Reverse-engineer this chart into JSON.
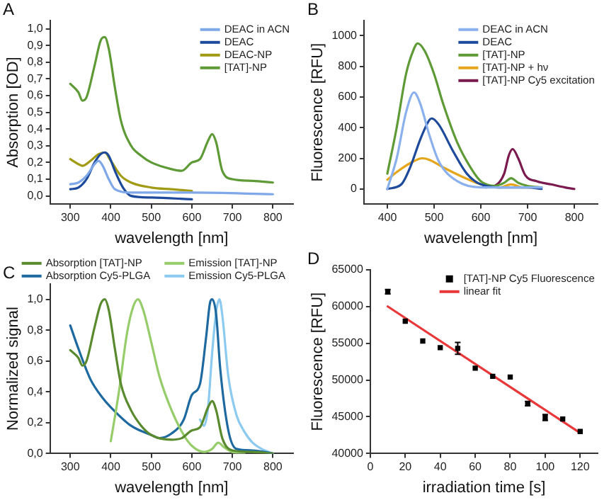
{
  "chart_data": [
    {
      "type": "line",
      "title": "A",
      "xlabel": "wavelength [nm]",
      "ylabel": "Absorption [OD]",
      "xlim": [
        250,
        850
      ],
      "xticks": [
        300,
        400,
        500,
        600,
        700,
        800
      ],
      "ylim": [
        -0.05,
        1.05
      ],
      "yticks": [
        {
          "value": 0,
          "label": "0,0"
        },
        {
          "value": 0.1,
          "label": "0,1"
        },
        {
          "value": 0.2,
          "label": "0,2"
        },
        {
          "value": 0.3,
          "label": "0,3"
        },
        {
          "value": 0.4,
          "label": "0,4"
        },
        {
          "value": 0.5,
          "label": "0,5"
        },
        {
          "value": 0.6,
          "label": "0,6"
        },
        {
          "value": 0.7,
          "label": "0,7"
        },
        {
          "value": 0.8,
          "label": "0,8"
        },
        {
          "value": 0.9,
          "label": "0,9"
        },
        {
          "value": 1.0,
          "label": "1,0"
        }
      ],
      "grid": false,
      "legend": "top right",
      "series": [
        {
          "name": "DEAC in ACN",
          "color": "#7fa8e8",
          "x": [
            300,
            320,
            340,
            360,
            370,
            380,
            395,
            410,
            450,
            600,
            800
          ],
          "values": [
            0.07,
            0.08,
            0.12,
            0.19,
            0.21,
            0.18,
            0.1,
            0.04,
            0.02,
            0.02,
            0.01
          ]
        },
        {
          "name": "DEAC",
          "color": "#1e4a9c",
          "x": [
            300,
            320,
            340,
            360,
            375,
            385,
            395,
            410,
            430,
            450,
            500,
            600
          ],
          "values": [
            0.04,
            0.05,
            0.1,
            0.2,
            0.25,
            0.26,
            0.24,
            0.15,
            0.05,
            0.0,
            -0.01,
            -0.02
          ]
        },
        {
          "name": "DEAC-NP",
          "color": "#a09a14",
          "x": [
            300,
            320,
            330,
            350,
            370,
            385,
            400,
            425,
            450,
            500,
            550,
            600
          ],
          "values": [
            0.22,
            0.19,
            0.18,
            0.21,
            0.25,
            0.26,
            0.21,
            0.12,
            0.08,
            0.05,
            0.04,
            0.03
          ]
        },
        {
          "name": "[TAT]-NP",
          "color": "#5e9a36",
          "x": [
            300,
            320,
            330,
            340,
            360,
            375,
            385,
            395,
            410,
            425,
            450,
            475,
            500,
            550,
            575,
            600,
            620,
            640,
            650,
            660,
            675,
            700,
            750,
            800
          ],
          "values": [
            0.67,
            0.62,
            0.57,
            0.59,
            0.78,
            0.93,
            0.95,
            0.88,
            0.65,
            0.45,
            0.3,
            0.24,
            0.2,
            0.16,
            0.15,
            0.2,
            0.22,
            0.33,
            0.37,
            0.32,
            0.15,
            0.1,
            0.09,
            0.08
          ]
        }
      ]
    },
    {
      "type": "line",
      "title": "B",
      "xlabel": "wavelength [nm]",
      "ylabel": "Fluorescence [RFU]",
      "xlim": [
        350,
        850
      ],
      "xticks": [
        400,
        500,
        600,
        700,
        800
      ],
      "ylim": [
        -100,
        1100
      ],
      "yticks": [
        0,
        200,
        400,
        600,
        800,
        1000
      ],
      "grid": false,
      "legend": "top right",
      "series": [
        {
          "name": "DEAC in ACN",
          "color": "#8ab0ee",
          "x": [
            400,
            420,
            440,
            457,
            470,
            490,
            510,
            550,
            600,
            650,
            730
          ],
          "values": [
            0,
            200,
            500,
            630,
            560,
            350,
            180,
            50,
            10,
            10,
            10
          ]
        },
        {
          "name": "DEAC",
          "color": "#1e4a9c",
          "x": [
            400,
            430,
            450,
            470,
            490,
            495,
            510,
            540,
            570,
            600,
            650,
            700,
            730
          ],
          "values": [
            0,
            30,
            150,
            320,
            450,
            460,
            420,
            250,
            100,
            30,
            10,
            10,
            0
          ]
        },
        {
          "name": "[TAT]-NP",
          "color": "#5e9a36",
          "x": [
            400,
            420,
            440,
            455,
            465,
            480,
            500,
            520,
            550,
            580,
            600,
            630,
            650,
            665,
            680,
            700,
            730
          ],
          "values": [
            100,
            400,
            750,
            900,
            950,
            900,
            750,
            550,
            300,
            130,
            50,
            20,
            40,
            70,
            40,
            20,
            10
          ]
        },
        {
          "name": "[TAT]-NP + hν",
          "color": "#e6a61c",
          "x": [
            400,
            420,
            450,
            475,
            490,
            520,
            560,
            600,
            640,
            665,
            690,
            730
          ],
          "values": [
            60,
            110,
            170,
            200,
            190,
            140,
            80,
            30,
            10,
            30,
            10,
            10
          ]
        },
        {
          "name": "[TAT]-NP Cy5 excitation",
          "color": "#7a1a4e",
          "x": [
            610,
            630,
            650,
            660,
            668,
            680,
            695,
            720,
            750,
            780,
            800
          ],
          "values": [
            10,
            20,
            100,
            220,
            260,
            200,
            90,
            50,
            30,
            10,
            0
          ]
        }
      ]
    },
    {
      "type": "line",
      "title": "C",
      "xlabel": "wavelength [nm]",
      "ylabel": "Normalized signal",
      "xlim": [
        250,
        850
      ],
      "xticks": [
        300,
        400,
        500,
        600,
        700,
        800
      ],
      "ylim": [
        0,
        1.1
      ],
      "yticks": [
        {
          "value": 0,
          "label": "0,0"
        },
        {
          "value": 0.2,
          "label": "0,2"
        },
        {
          "value": 0.4,
          "label": "0,4"
        },
        {
          "value": 0.6,
          "label": "0,6"
        },
        {
          "value": 0.8,
          "label": "0,8"
        },
        {
          "value": 1.0,
          "label": "1,0"
        }
      ],
      "grid": false,
      "legend": "top",
      "series": [
        {
          "name": "Absorption [TAT]-NP",
          "color": "#5a8a2e",
          "x": [
            300,
            320,
            330,
            340,
            360,
            375,
            385,
            395,
            410,
            425,
            450,
            475,
            500,
            550,
            575,
            600,
            620,
            640,
            650,
            660,
            675,
            700,
            750,
            800
          ],
          "values": [
            0.67,
            0.62,
            0.57,
            0.6,
            0.82,
            0.97,
            1.0,
            0.93,
            0.68,
            0.45,
            0.28,
            0.18,
            0.12,
            0.09,
            0.1,
            0.15,
            0.17,
            0.3,
            0.34,
            0.28,
            0.1,
            0.02,
            0.01,
            0.0
          ]
        },
        {
          "name": "Emission [TAT]-NP",
          "color": "#96cc6a",
          "x": [
            400,
            420,
            440,
            455,
            467,
            480,
            500,
            520,
            550,
            580,
            600,
            630,
            650,
            665,
            680,
            700,
            730
          ],
          "values": [
            0.08,
            0.4,
            0.78,
            0.95,
            1.0,
            0.93,
            0.72,
            0.5,
            0.28,
            0.12,
            0.05,
            0.01,
            0.03,
            0.07,
            0.04,
            0.01,
            0.0
          ]
        },
        {
          "name": "Absorption Cy5-PLGA",
          "color": "#1e6aa0",
          "x": [
            300,
            320,
            350,
            380,
            400,
            450,
            500,
            520,
            550,
            580,
            600,
            620,
            635,
            645,
            650,
            660,
            670,
            690,
            710,
            750,
            800
          ],
          "values": [
            0.83,
            0.68,
            0.48,
            0.36,
            0.3,
            0.18,
            0.12,
            0.1,
            0.13,
            0.22,
            0.38,
            0.45,
            0.75,
            0.98,
            1.0,
            0.9,
            0.55,
            0.15,
            0.03,
            0.02,
            0.0
          ]
        },
        {
          "name": "Emission Cy5-PLGA",
          "color": "#8ccaf0",
          "x": [
            620,
            630,
            640,
            650,
            660,
            668,
            675,
            690,
            710,
            730,
            750,
            780,
            800
          ],
          "values": [
            0.22,
            0.18,
            0.3,
            0.65,
            0.92,
            1.0,
            0.9,
            0.5,
            0.25,
            0.14,
            0.07,
            0.02,
            0.0
          ]
        }
      ]
    },
    {
      "type": "scatter",
      "title": "D",
      "xlabel": "irradiation time [s]",
      "ylabel": "Fluorescence [RFU]",
      "xlim": [
        0,
        130
      ],
      "xticks": [
        0,
        20,
        40,
        60,
        80,
        100,
        120
      ],
      "ylim": [
        40000,
        65000
      ],
      "yticks": [
        40000,
        45000,
        50000,
        55000,
        60000,
        65000
      ],
      "grid": false,
      "legend": "top right",
      "series": [
        {
          "name": "[TAT]-NP Cy5 Fluorescence",
          "color": "#000000",
          "marker": "square",
          "x": [
            10,
            20,
            30,
            40,
            50,
            60,
            70,
            80,
            90,
            100,
            110,
            120
          ],
          "values": [
            62000,
            58000,
            55300,
            54400,
            54300,
            51600,
            50500,
            50400,
            46800,
            44900,
            44700,
            43000
          ],
          "errors": [
            300,
            null,
            null,
            null,
            800,
            null,
            null,
            null,
            300,
            400,
            null,
            null
          ]
        },
        {
          "name": "linear fit",
          "type": "line",
          "color": "#e8383a",
          "x": [
            10,
            120
          ],
          "values": [
            60000,
            42800
          ]
        }
      ]
    }
  ]
}
